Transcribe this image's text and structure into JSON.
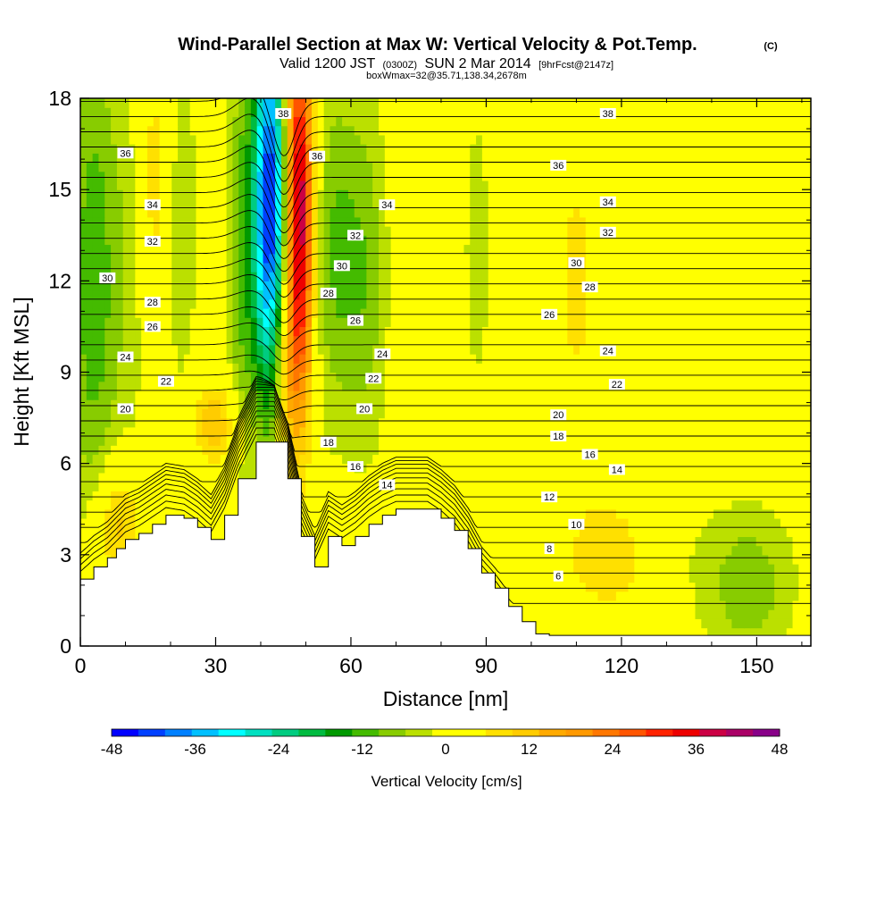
{
  "chart_data": {
    "type": "heatmap",
    "title": "Wind-Parallel Section at Max W: Vertical Velocity & Pot.Temp.",
    "title_mark": "(C)",
    "subtitle": {
      "prefix": "Valid 1200 JST",
      "utc": "(0300Z)",
      "date": "SUN 2 Mar 2014",
      "fcst": "[9hrFcst@2147z]"
    },
    "note": "boxWmax=32@35.71,138.34,2678m",
    "xlabel": "Distance [nm]",
    "ylabel": "Height [Kft MSL]",
    "xlim": [
      0,
      162
    ],
    "ylim": [
      0,
      18
    ],
    "x_ticks": [
      "0",
      "30",
      "60",
      "90",
      "120",
      "150"
    ],
    "y_ticks": [
      "0",
      "3",
      "6",
      "9",
      "12",
      "15",
      "18"
    ],
    "grid": false,
    "colorbar": {
      "label": "Vertical Velocity [cm/s]",
      "min": -48,
      "max": 48,
      "step": 4,
      "tick_labels": [
        "-48",
        "-36",
        "-24",
        "-12",
        "0",
        "12",
        "24",
        "36",
        "48"
      ],
      "colors": [
        "#0000ff",
        "#0040ff",
        "#0080ff",
        "#00c0ff",
        "#00ffff",
        "#00e0c0",
        "#00cc80",
        "#00bb40",
        "#009900",
        "#44bb00",
        "#88cc00",
        "#bbe000",
        "#ffff00",
        "#ffff00",
        "#ffe000",
        "#ffcc00",
        "#ffaa00",
        "#ff9900",
        "#ff7700",
        "#ff5500",
        "#ff2200",
        "#ee0000",
        "#cc0044",
        "#aa0066",
        "#880088"
      ]
    },
    "vertical_velocity_field": {
      "background": 3,
      "features": [
        {
          "x": 42,
          "y": 14.5,
          "sx": 2.5,
          "sy": 4.5,
          "w": -48
        },
        {
          "x": 46,
          "y": 10.5,
          "sx": 2,
          "sy": 3,
          "w": -12
        },
        {
          "x": 48.5,
          "y": 14,
          "sx": 2.2,
          "sy": 4.5,
          "w": 44
        },
        {
          "x": 45.5,
          "y": 9.5,
          "sx": 2,
          "sy": 2.5,
          "w": 20
        },
        {
          "x": 36,
          "y": 13,
          "sx": 2.5,
          "sy": 5,
          "w": -12
        },
        {
          "x": 3,
          "y": 12,
          "sx": 4,
          "sy": 6,
          "w": -14
        },
        {
          "x": 12,
          "y": 13,
          "sx": 3,
          "sy": 5,
          "w": -6
        },
        {
          "x": 22,
          "y": 14,
          "sx": 3,
          "sy": 5,
          "w": -6
        },
        {
          "x": 57,
          "y": 13,
          "sx": 4,
          "sy": 4,
          "w": -12
        },
        {
          "x": 64,
          "y": 12,
          "sx": 3,
          "sy": 4,
          "w": -8
        },
        {
          "x": 88,
          "y": 13,
          "sx": 3,
          "sy": 5,
          "w": -4
        },
        {
          "x": 150,
          "y": 15,
          "sx": 10,
          "sy": 3,
          "w": -3
        },
        {
          "x": 148,
          "y": 2,
          "sx": 7,
          "sy": 1.8,
          "w": -10
        },
        {
          "x": 130,
          "y": 3.5,
          "sx": 6,
          "sy": 2,
          "w": -3
        },
        {
          "x": 118,
          "y": 3,
          "sx": 8,
          "sy": 1.5,
          "w": 8
        },
        {
          "x": 16,
          "y": 15,
          "sx": 3,
          "sy": 4,
          "w": 9
        },
        {
          "x": 8,
          "y": 4,
          "sx": 4,
          "sy": 1.5,
          "w": 12
        },
        {
          "x": 30,
          "y": 7.3,
          "sx": 4,
          "sy": 1,
          "w": 12
        },
        {
          "x": 110,
          "y": 12,
          "sx": 4,
          "sy": 4,
          "w": 6
        }
      ]
    },
    "potential_temperature_contours": {
      "levels": [
        "6",
        "8",
        "10",
        "12",
        "14",
        "16",
        "18",
        "20",
        "22",
        "24",
        "26",
        "28",
        "30",
        "32",
        "34",
        "36",
        "38"
      ],
      "labels": [
        {
          "text": "38",
          "x": 45,
          "y": 17.5
        },
        {
          "text": "38",
          "x": 117,
          "y": 17.5
        },
        {
          "text": "36",
          "x": 10,
          "y": 16.2
        },
        {
          "text": "36",
          "x": 52.5,
          "y": 16.1
        },
        {
          "text": "36",
          "x": 106,
          "y": 15.8
        },
        {
          "text": "34",
          "x": 16,
          "y": 14.5
        },
        {
          "text": "34",
          "x": 68,
          "y": 14.5
        },
        {
          "text": "34",
          "x": 117,
          "y": 14.6
        },
        {
          "text": "32",
          "x": 16,
          "y": 13.3
        },
        {
          "text": "32",
          "x": 61,
          "y": 13.5
        },
        {
          "text": "32",
          "x": 117,
          "y": 13.6
        },
        {
          "text": "30",
          "x": 6,
          "y": 12.1
        },
        {
          "text": "30",
          "x": 58,
          "y": 12.5
        },
        {
          "text": "30",
          "x": 110,
          "y": 12.6
        },
        {
          "text": "28",
          "x": 16,
          "y": 11.3
        },
        {
          "text": "28",
          "x": 55,
          "y": 11.6
        },
        {
          "text": "28",
          "x": 113,
          "y": 11.8
        },
        {
          "text": "26",
          "x": 16,
          "y": 10.5
        },
        {
          "text": "26",
          "x": 61,
          "y": 10.7
        },
        {
          "text": "26",
          "x": 104,
          "y": 10.9
        },
        {
          "text": "24",
          "x": 10,
          "y": 9.5
        },
        {
          "text": "24",
          "x": 67,
          "y": 9.6
        },
        {
          "text": "24",
          "x": 117,
          "y": 9.7
        },
        {
          "text": "22",
          "x": 19,
          "y": 8.7
        },
        {
          "text": "22",
          "x": 65,
          "y": 8.8
        },
        {
          "text": "22",
          "x": 119,
          "y": 8.6
        },
        {
          "text": "20",
          "x": 10,
          "y": 7.8
        },
        {
          "text": "20",
          "x": 63,
          "y": 7.8
        },
        {
          "text": "20",
          "x": 106,
          "y": 7.6
        },
        {
          "text": "18",
          "x": 55,
          "y": 6.7
        },
        {
          "text": "18",
          "x": 106,
          "y": 6.9
        },
        {
          "text": "16",
          "x": 61,
          "y": 5.9
        },
        {
          "text": "16",
          "x": 113,
          "y": 6.3
        },
        {
          "text": "14",
          "x": 68,
          "y": 5.3
        },
        {
          "text": "14",
          "x": 119,
          "y": 5.8
        },
        {
          "text": "12",
          "x": 104,
          "y": 4.9
        },
        {
          "text": "10",
          "x": 110,
          "y": 4.0
        },
        {
          "text": "8",
          "x": 104,
          "y": 3.2
        },
        {
          "text": "6",
          "x": 106,
          "y": 2.3
        }
      ]
    },
    "terrain": {
      "x": [
        0,
        3,
        6,
        8,
        10,
        13,
        16,
        19,
        23,
        26,
        29,
        32,
        35,
        39,
        43,
        46,
        49,
        52,
        55,
        58,
        61,
        64,
        67,
        70,
        73,
        77,
        80,
        83,
        86,
        89,
        92,
        95,
        98,
        101,
        104,
        107,
        110,
        113,
        116,
        119,
        122,
        125,
        128,
        131,
        134,
        137,
        140,
        143,
        146,
        149,
        152,
        155,
        158,
        161
      ],
      "y": [
        2.2,
        2.6,
        2.9,
        3.2,
        3.5,
        3.7,
        4.0,
        4.3,
        4.2,
        3.9,
        3.5,
        4.3,
        5.5,
        6.7,
        6.7,
        5.5,
        3.6,
        2.6,
        3.6,
        3.3,
        3.6,
        4.0,
        4.3,
        4.5,
        4.5,
        4.5,
        4.2,
        3.8,
        3.2,
        2.4,
        1.9,
        1.3,
        0.8,
        0.4,
        0.35,
        0.35,
        0.35,
        0.35,
        0.35,
        0.35,
        0.35,
        0.35,
        0.35,
        0.35,
        0.35,
        0.35,
        0.35,
        0.35,
        0.35,
        0.35,
        0.35,
        0.35,
        0.35,
        0.35
      ]
    }
  }
}
